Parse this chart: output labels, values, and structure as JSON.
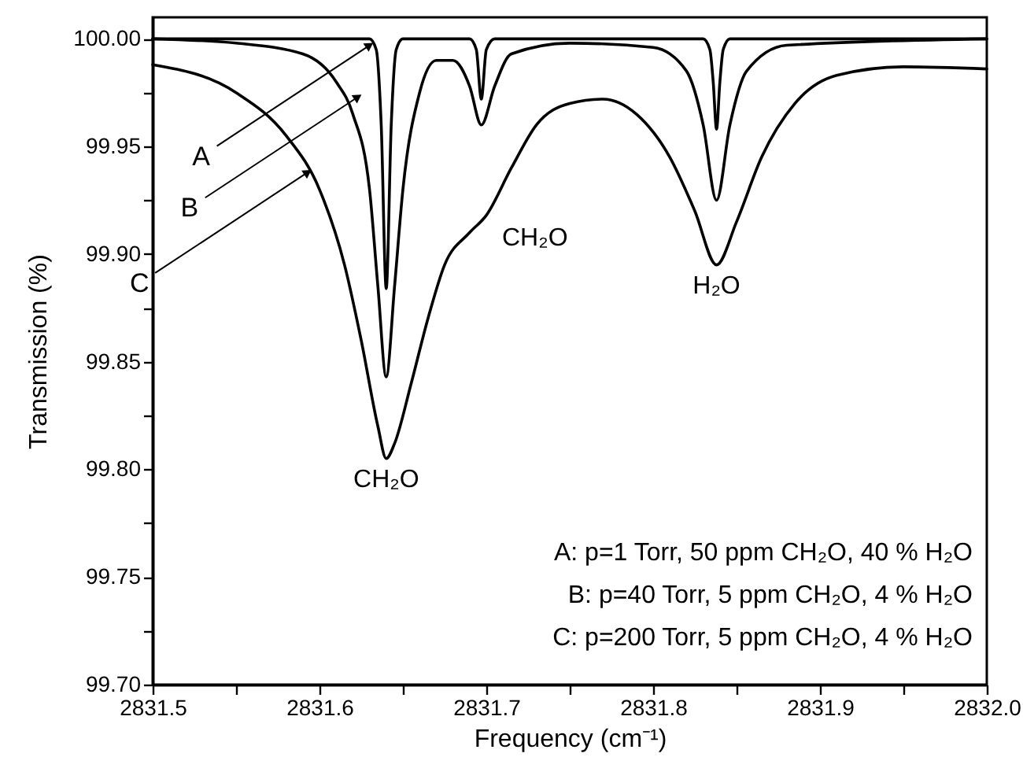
{
  "chart_data": {
    "type": "line",
    "xlabel": "Frequency (cm⁻¹)",
    "ylabel": "Transmission (%)",
    "xlim": [
      2831.5,
      2832.0
    ],
    "ylim": [
      99.7,
      100.01
    ],
    "xticks": [
      2831.5,
      {
        "value": 2831.55,
        "label": null
      },
      2831.6,
      {
        "value": 2831.65,
        "label": null
      },
      2831.7,
      {
        "value": 2831.75,
        "label": null
      },
      2831.8,
      {
        "value": 2831.85,
        "label": null
      },
      2831.9,
      {
        "value": 2831.95,
        "label": null
      },
      {
        "value": 2832.0,
        "label": "2832.0"
      }
    ],
    "yticks": [
      {
        "value": 99.7,
        "label": "99.70"
      },
      {
        "value": 99.725,
        "label": null
      },
      {
        "value": 99.75,
        "label": "99.75"
      },
      {
        "value": 99.775,
        "label": null
      },
      {
        "value": 99.8,
        "label": "99.80"
      },
      {
        "value": 99.825,
        "label": null
      },
      {
        "value": 99.85,
        "label": "99.85"
      },
      {
        "value": 99.875,
        "label": null
      },
      {
        "value": 99.9,
        "label": "99.90"
      },
      {
        "value": 99.925,
        "label": null
      },
      {
        "value": 99.95,
        "label": "99.95"
      },
      {
        "value": 99.975,
        "label": null
      },
      {
        "value": 100.0,
        "label": "100.00"
      }
    ],
    "marker": "none",
    "line_style": "solid",
    "series": [
      {
        "color": "#000000",
        "x": [
          2831.5,
          2831.63,
          2831.634,
          2831.637,
          2831.64,
          2831.643,
          2831.646,
          2831.65,
          2831.69,
          2831.694,
          2831.697,
          2831.7,
          2831.705,
          2831.83,
          2831.834,
          2831.836,
          2831.838,
          2831.84,
          2831.842,
          2831.846,
          2832.0
        ],
        "values": [
          100.0,
          100.0,
          99.995,
          99.96,
          99.884,
          99.96,
          99.995,
          100.0,
          100.0,
          99.995,
          99.972,
          99.995,
          100.0,
          100.0,
          99.995,
          99.98,
          99.958,
          99.98,
          99.995,
          100.0,
          100.0
        ]
      },
      {
        "color": "#000000",
        "x": [
          2831.5,
          2831.55,
          2831.59,
          2831.61,
          2831.62,
          2831.63,
          2831.635,
          2831.64,
          2831.645,
          2831.65,
          2831.66,
          2831.67,
          2831.68,
          2831.69,
          2831.697,
          2831.705,
          2831.715,
          2831.75,
          2831.8,
          2831.82,
          2831.83,
          2831.838,
          2831.846,
          2831.856,
          2831.88,
          2832.0
        ],
        "values": [
          100.0,
          99.998,
          99.993,
          99.98,
          99.965,
          99.93,
          99.885,
          99.843,
          99.885,
          99.93,
          99.975,
          99.99,
          99.99,
          99.978,
          99.96,
          99.978,
          99.993,
          99.998,
          99.996,
          99.985,
          99.96,
          99.925,
          99.96,
          99.985,
          99.997,
          100.0
        ]
      },
      {
        "color": "#000000",
        "x": [
          2831.5,
          2831.55,
          2831.58,
          2831.6,
          2831.615,
          2831.625,
          2831.635,
          2831.64,
          2831.645,
          2831.655,
          2831.665,
          2831.675,
          2831.69,
          2831.7,
          2831.715,
          2831.73,
          2831.75,
          2831.77,
          2831.79,
          2831.81,
          2831.825,
          2831.838,
          2831.85,
          2831.865,
          2831.885,
          2831.91,
          2831.95,
          2832.0
        ],
        "values": [
          99.988,
          99.975,
          99.955,
          99.93,
          99.895,
          99.86,
          99.82,
          99.805,
          99.812,
          99.84,
          99.87,
          99.895,
          99.91,
          99.918,
          99.94,
          99.96,
          99.97,
          99.972,
          99.965,
          99.945,
          99.92,
          99.895,
          99.915,
          99.945,
          99.97,
          99.983,
          99.987,
          99.986
        ]
      }
    ],
    "annotations": [
      {
        "text": "A",
        "x": 2831.63,
        "y": 99.997
      },
      {
        "text": "B",
        "x": 2831.623,
        "y": 99.973
      },
      {
        "text": "C",
        "x": 2831.593,
        "y": 99.938
      },
      {
        "text": "CH₂O",
        "x": 2831.64,
        "y": 99.805
      },
      {
        "text": "CH₂O",
        "x": 2831.7,
        "y": 99.918
      },
      {
        "text": "H₂O",
        "x": 2831.838,
        "y": 99.895
      },
      "A: p=1 Torr, 50 ppm CH₂O, 40 % H₂O",
      "B: p=40 Torr, 5 ppm CH₂O, 4 % H₂O",
      "C: p=200 Torr, 5 ppm CH₂O, 4 % H₂O"
    ]
  }
}
